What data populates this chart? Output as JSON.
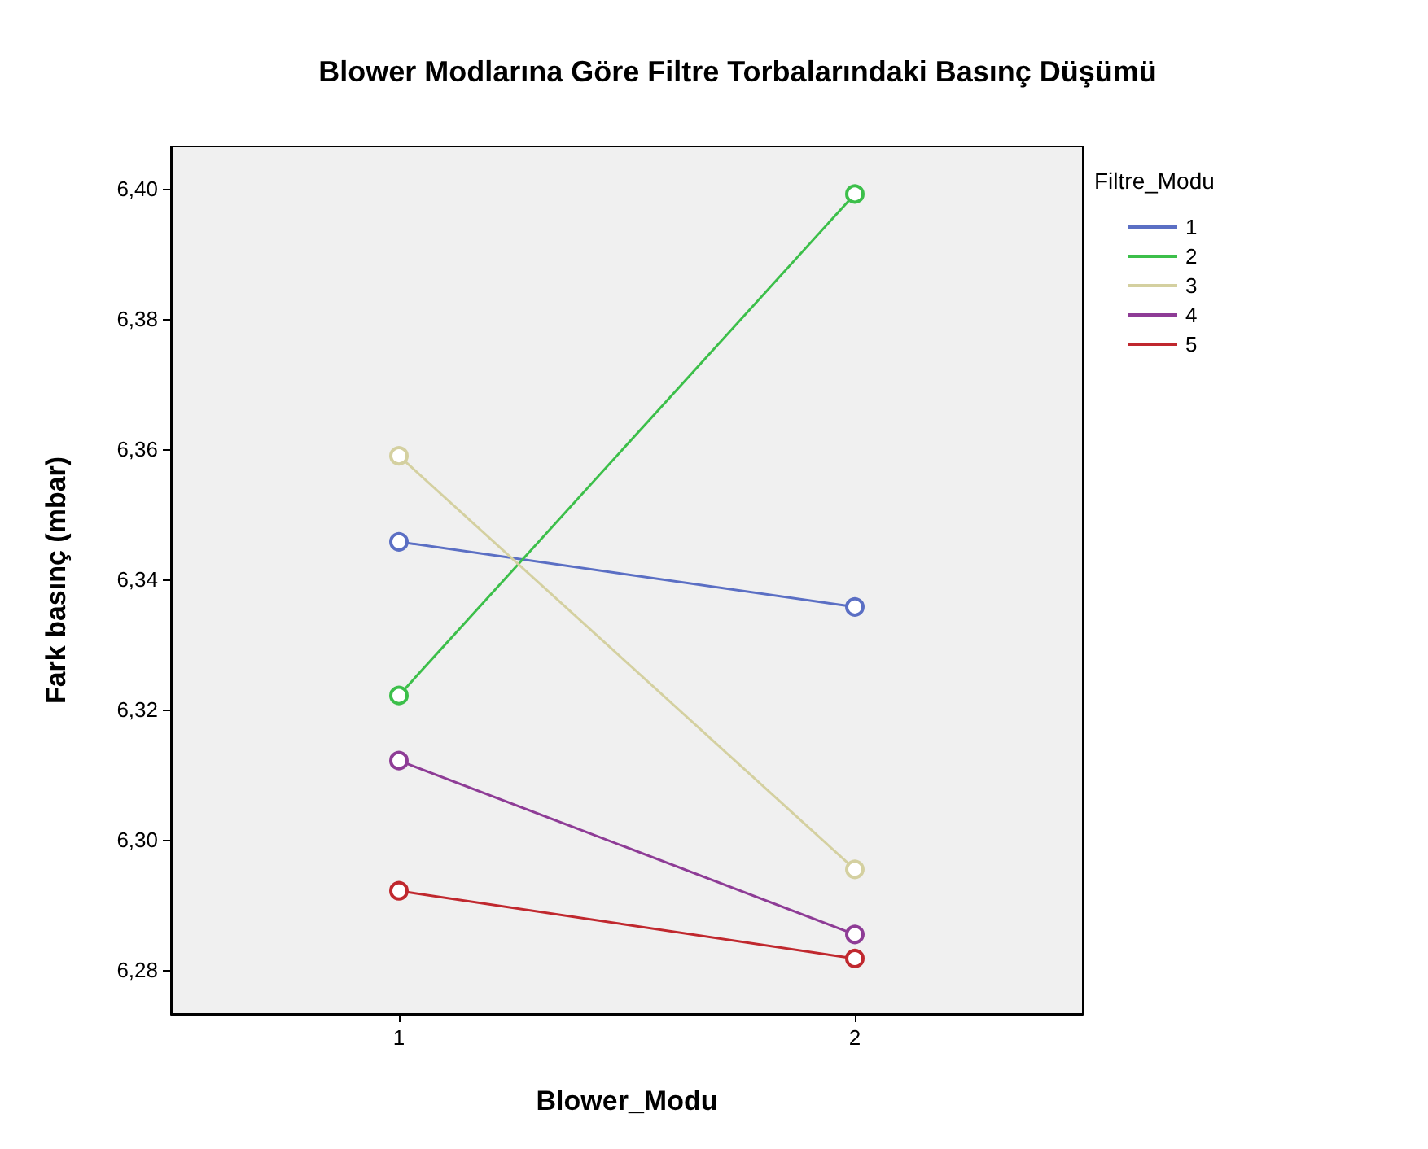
{
  "chart_data": {
    "type": "line",
    "title": "Blower Modlarına Göre Filtre Torbalarındaki Basınç Düşümü",
    "xlabel": "Blower_Modu",
    "ylabel": "Fark basınç (mbar)",
    "legend_title": "Filtre_Modu",
    "categories": [
      "1",
      "2"
    ],
    "series": [
      {
        "name": "1",
        "color": "#5b6fc4",
        "values": [
          6.3458,
          6.3358
        ]
      },
      {
        "name": "2",
        "color": "#3cbf4a",
        "values": [
          6.3222,
          6.3992
        ]
      },
      {
        "name": "3",
        "color": "#d4d0a0",
        "values": [
          6.359,
          6.2955
        ]
      },
      {
        "name": "4",
        "color": "#8e3c96",
        "values": [
          6.3122,
          6.2855
        ]
      },
      {
        "name": "5",
        "color": "#c0282e",
        "values": [
          6.2922,
          6.2818
        ]
      }
    ],
    "ylim": [
      6.2733,
      6.4065
    ],
    "yticks": [
      {
        "value": 6.28,
        "label": "6,28"
      },
      {
        "value": 6.3,
        "label": "6,30"
      },
      {
        "value": 6.32,
        "label": "6,32"
      },
      {
        "value": 6.34,
        "label": "6,34"
      },
      {
        "value": 6.36,
        "label": "6,36"
      },
      {
        "value": 6.38,
        "label": "6,38"
      },
      {
        "value": 6.4,
        "label": "6,40"
      }
    ],
    "grid": false,
    "legend": "top right",
    "marker": "circle",
    "line_style": "solid"
  }
}
